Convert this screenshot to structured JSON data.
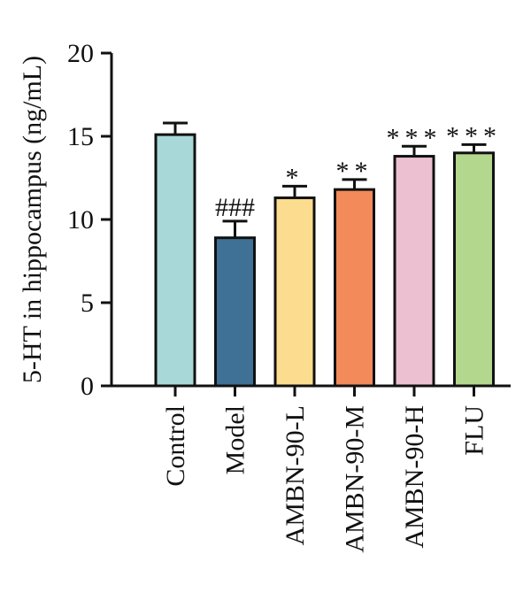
{
  "chart_data": {
    "type": "bar",
    "title": "",
    "xlabel": "",
    "ylabel": "5-HT in hippocampus (ng/mL)",
    "ylim": [
      0,
      20
    ],
    "yticks": [
      0,
      5,
      10,
      15,
      20
    ],
    "grid": false,
    "legend": "none",
    "categories": [
      "Control",
      "Model",
      "AMBN-90-L",
      "AMBN-90-M",
      "AMBN-90-H",
      "FLU"
    ],
    "values": [
      15.1,
      8.9,
      11.3,
      11.8,
      13.8,
      14.0
    ],
    "errors": [
      0.7,
      1.0,
      0.7,
      0.6,
      0.6,
      0.5
    ],
    "annotations": [
      "",
      "###",
      "*",
      "**",
      "***",
      "***"
    ],
    "colors": [
      "#a8d8d8",
      "#3f7196",
      "#fcdc8e",
      "#f38a5a",
      "#ecbfd1",
      "#b4d78e"
    ]
  }
}
